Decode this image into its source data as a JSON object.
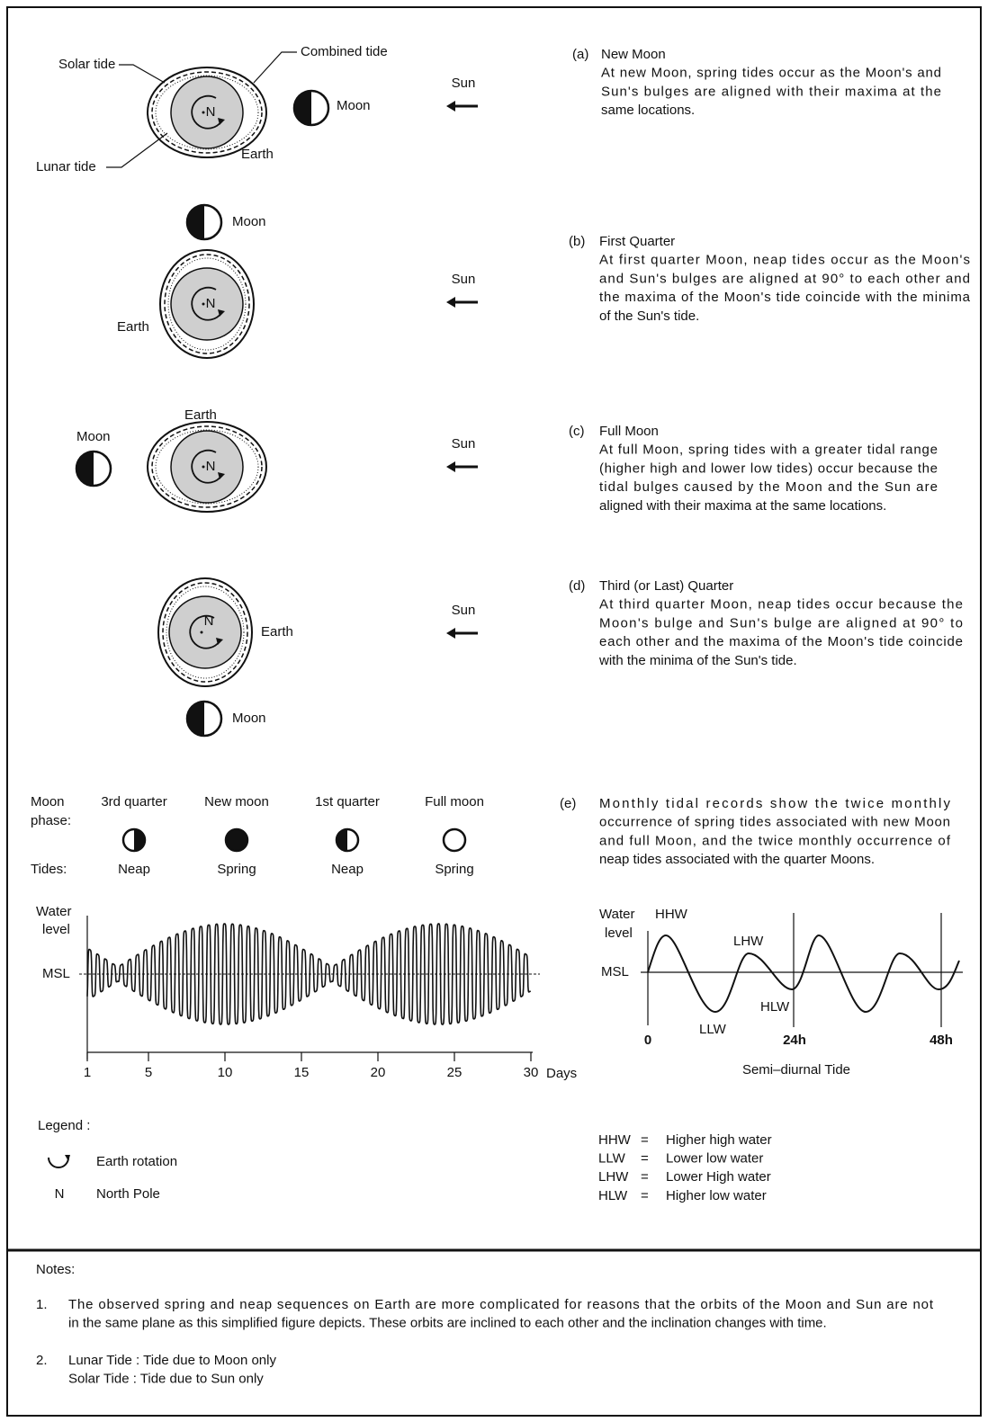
{
  "panels": [
    {
      "label": "(a)",
      "title": "New Moon",
      "lines": [
        "At new Moon, spring tides occur as the Moon's and",
        "Sun's bulges are aligned with their maxima at the",
        "same locations."
      ]
    },
    {
      "label": "(b)",
      "title": "First Quarter",
      "lines": [
        "At first quarter Moon, neap tides occur as the Moon's",
        "and Sun's bulges are aligned at 90° to each other and",
        "the maxima of the Moon's tide coincide with the minima",
        "of the Sun's tide."
      ]
    },
    {
      "label": "(c)",
      "title": "Full Moon",
      "lines": [
        "At full Moon, spring tides with a greater tidal range",
        "(higher high and lower low tides) occur because the",
        "tidal bulges caused by the Moon and the Sun are",
        "aligned with their maxima at the same locations."
      ]
    },
    {
      "label": "(d)",
      "title": "Third (or Last) Quarter",
      "lines": [
        "At third quarter Moon, neap tides occur because the",
        "Moon's bulge and Sun's bulge are aligned at 90° to",
        "each other and the maxima of the Moon's tide coincide",
        "with the minima of the Sun's tide."
      ]
    },
    {
      "label": "(e)",
      "lines": [
        "Monthly tidal records show the twice monthly",
        "occurrence of spring tides associated with new Moon",
        "and full Moon, and the twice monthly occurrence of",
        "neap tides associated with the quarter Moons."
      ]
    }
  ],
  "diagram_labels": {
    "solar_tide": "Solar tide",
    "combined_tide": "Combined tide",
    "lunar_tide": "Lunar tide",
    "earth": "Earth",
    "moon": "Moon",
    "sun": "Sun",
    "north": "N"
  },
  "monthly_chart": {
    "moon_phase_label": [
      "Moon",
      "phase:"
    ],
    "tides_label": "Tides:",
    "phases": [
      {
        "name": "3rd quarter",
        "tide": "Neap"
      },
      {
        "name": "New moon",
        "tide": "Spring"
      },
      {
        "name": "1st quarter",
        "tide": "Neap"
      },
      {
        "name": "Full moon",
        "tide": "Spring"
      }
    ],
    "y_label": [
      "Water",
      "level"
    ],
    "msl": "MSL",
    "xlim": [
      1,
      30
    ],
    "xticks": [
      1,
      5,
      10,
      15,
      20,
      25,
      30
    ],
    "x_unit": "Days"
  },
  "semi_diurnal": {
    "y_label": [
      "Water",
      "level"
    ],
    "msl": "MSL",
    "hhw": "HHW",
    "lhw": "LHW",
    "hlw": "HLW",
    "llw": "LLW",
    "x_labels": [
      "0",
      "24h",
      "48h"
    ],
    "caption": "Semi–diurnal Tide"
  },
  "legend": {
    "title": "Legend :",
    "rotation": "Earth rotation",
    "north_symbol": "N",
    "north": "North Pole"
  },
  "abbreviations": [
    {
      "abbr": "HHW",
      "sep": "=",
      "meaning": "Higher high water"
    },
    {
      "abbr": "LLW",
      "sep": "=",
      "meaning": "Lower low water"
    },
    {
      "abbr": "LHW",
      "sep": "=",
      "meaning": "Lower High water"
    },
    {
      "abbr": "HLW",
      "sep": "=",
      "meaning": "Higher low water"
    }
  ],
  "notes": {
    "title": "Notes:",
    "items": [
      {
        "number": "1.",
        "lines": [
          "The observed spring and neap sequences on Earth are more complicated for reasons that the orbits of the Moon and Sun are not",
          "in the same plane as this simplified figure depicts. These orbits are inclined to each other and the inclination changes with time."
        ]
      },
      {
        "number": "2.",
        "lines": [
          "Lunar Tide  : Tide due to Moon only",
          "Solar Tide  : Tide due to Sun only"
        ]
      }
    ]
  }
}
